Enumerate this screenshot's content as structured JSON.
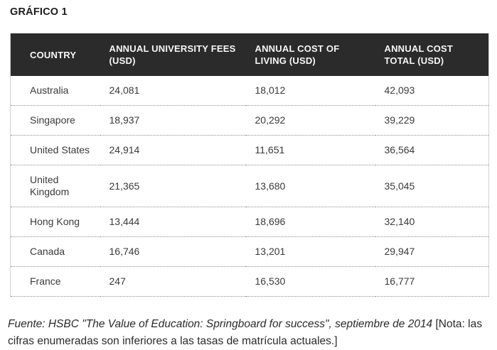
{
  "figure": {
    "title": "GRÁFICO 1"
  },
  "table": {
    "columns": [
      {
        "label": "COUNTRY"
      },
      {
        "label": "ANNUAL UNIVERSITY FEES (USD)"
      },
      {
        "label": "ANNUAL COST OF LIVING (USD)"
      },
      {
        "label": "ANNUAL COST TOTAL (USD)"
      }
    ],
    "rows": [
      {
        "country": "Australia",
        "fees": "24,081",
        "living": "18,012",
        "total": "42,093"
      },
      {
        "country": "Singapore",
        "fees": "18,937",
        "living": "20,292",
        "total": "39,229"
      },
      {
        "country": "United States",
        "fees": "24,914",
        "living": "11,651",
        "total": "36,564"
      },
      {
        "country": "United Kingdom",
        "fees": "21,365",
        "living": "13,680",
        "total": "35,045"
      },
      {
        "country": "Hong Kong",
        "fees": "13,444",
        "living": "18,696",
        "total": "32,140"
      },
      {
        "country": "Canada",
        "fees": "16,746",
        "living": "13,201",
        "total": "29,947"
      },
      {
        "country": "France",
        "fees": "247",
        "living": "16,530",
        "total": "16,777"
      }
    ]
  },
  "footer": {
    "source_italic": "Fuente: HSBC \"The Value of Education: Springboard for success\", septiembre de 2014",
    "note_plain": " [Nota: las cifras enumeradas son inferiores a las tasas de matrícula actuales.]"
  },
  "colors": {
    "header_background": "#2b2b2b",
    "header_text": "#f7f7f7",
    "body_text": "#3a3a3a",
    "row_divider": "#8f8f8f",
    "table_side_border": "#d2d2d2"
  },
  "chart_data": {
    "type": "table",
    "title": "GRÁFICO 1",
    "columns": [
      "COUNTRY",
      "ANNUAL UNIVERSITY FEES (USD)",
      "ANNUAL COST OF LIVING (USD)",
      "ANNUAL COST TOTAL (USD)"
    ],
    "rows": [
      [
        "Australia",
        24081,
        18012,
        42093
      ],
      [
        "Singapore",
        18937,
        20292,
        39229
      ],
      [
        "United States",
        24914,
        11651,
        36564
      ],
      [
        "United Kingdom",
        21365,
        13680,
        35045
      ],
      [
        "Hong Kong",
        13444,
        18696,
        32140
      ],
      [
        "Canada",
        16746,
        13201,
        29947
      ],
      [
        "France",
        247,
        16530,
        16777
      ]
    ],
    "source_note": "Fuente: HSBC \"The Value of Education: Springboard for success\", septiembre de 2014 [Nota: las cifras enumeradas son inferiores a las tasas de matrícula actuales.]"
  }
}
